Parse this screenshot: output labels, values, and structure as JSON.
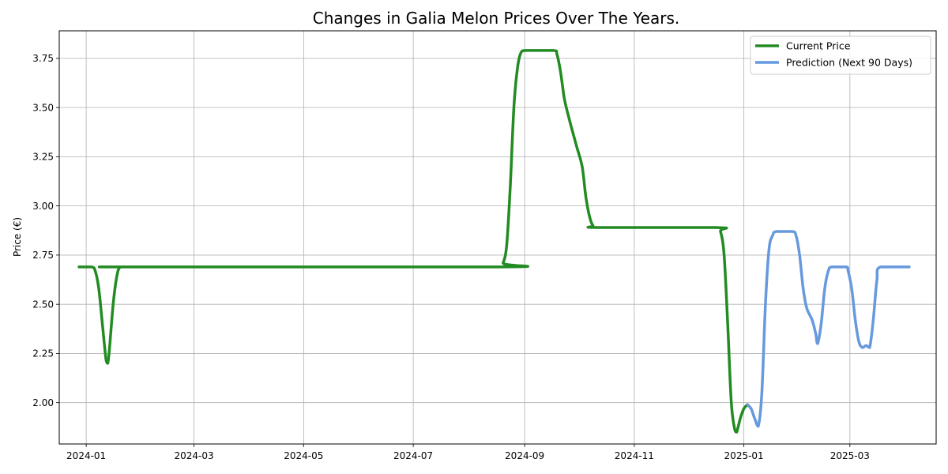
{
  "chart_data": {
    "type": "line",
    "title": "Changes in Galia Melon Prices Over The Years.",
    "xlabel": "",
    "ylabel": "Price (€)",
    "x_type": "date",
    "xlim": [
      "2023-12-17",
      "2025-04-18"
    ],
    "ylim": [
      1.79,
      3.89
    ],
    "x_ticks": [
      "2024-01-01",
      "2024-03-01",
      "2024-05-01",
      "2024-07-01",
      "2024-09-01",
      "2024-11-01",
      "2025-01-01",
      "2025-03-01"
    ],
    "x_tick_labels": [
      "2024-01",
      "2024-03",
      "2024-05",
      "2024-07",
      "2024-09",
      "2024-11",
      "2025-01",
      "2025-03"
    ],
    "y_ticks": [
      2.0,
      2.25,
      2.5,
      2.75,
      3.0,
      3.25,
      3.5,
      3.75
    ],
    "y_tick_labels": [
      "2.00",
      "2.25",
      "2.50",
      "2.75",
      "3.00",
      "3.25",
      "3.50",
      "3.75"
    ],
    "grid": true,
    "legend_position": "top-right",
    "series": [
      {
        "name": "Current Price",
        "color": "#228b22",
        "points": [
          [
            "2023-12-28",
            2.69
          ],
          [
            "2024-01-04",
            2.69
          ],
          [
            "2024-01-06",
            2.67
          ],
          [
            "2024-01-08",
            2.58
          ],
          [
            "2024-01-10",
            2.4
          ],
          [
            "2024-01-12",
            2.22
          ],
          [
            "2024-01-13",
            2.2
          ],
          [
            "2024-01-14",
            2.28
          ],
          [
            "2024-01-16",
            2.5
          ],
          [
            "2024-01-18",
            2.64
          ],
          [
            "2024-01-20",
            2.69
          ],
          [
            "2024-01-25",
            2.69
          ],
          [
            "2024-08-18",
            2.69
          ],
          [
            "2024-08-20",
            2.71
          ],
          [
            "2024-08-22",
            2.8
          ],
          [
            "2024-08-24",
            3.1
          ],
          [
            "2024-08-26",
            3.5
          ],
          [
            "2024-08-28",
            3.7
          ],
          [
            "2024-08-30",
            3.78
          ],
          [
            "2024-09-02",
            3.79
          ],
          [
            "2024-09-17",
            3.79
          ],
          [
            "2024-09-19",
            3.77
          ],
          [
            "2024-09-21",
            3.68
          ],
          [
            "2024-09-23",
            3.55
          ],
          [
            "2024-09-25",
            3.47
          ],
          [
            "2024-09-27",
            3.4
          ],
          [
            "2024-09-30",
            3.3
          ],
          [
            "2024-10-03",
            3.2
          ],
          [
            "2024-10-05",
            3.05
          ],
          [
            "2024-10-07",
            2.95
          ],
          [
            "2024-10-09",
            2.9
          ],
          [
            "2024-10-12",
            2.89
          ],
          [
            "2024-12-17",
            2.89
          ],
          [
            "2024-12-19",
            2.87
          ],
          [
            "2024-12-21",
            2.75
          ],
          [
            "2024-12-23",
            2.4
          ],
          [
            "2024-12-25",
            2.0
          ],
          [
            "2024-12-27",
            1.86
          ],
          [
            "2024-12-28",
            1.85
          ],
          [
            "2024-12-30",
            1.92
          ],
          [
            "2025-01-01",
            1.97
          ],
          [
            "2025-01-03",
            1.99
          ]
        ]
      },
      {
        "name": "Prediction (Next 90 Days)",
        "color": "#6699dd",
        "points": [
          [
            "2025-01-03",
            1.99
          ],
          [
            "2025-01-05",
            1.97
          ],
          [
            "2025-01-07",
            1.92
          ],
          [
            "2025-01-09",
            1.88
          ],
          [
            "2025-01-11",
            2.05
          ],
          [
            "2025-01-13",
            2.5
          ],
          [
            "2025-01-15",
            2.78
          ],
          [
            "2025-01-17",
            2.85
          ],
          [
            "2025-01-19",
            2.87
          ],
          [
            "2025-01-28",
            2.87
          ],
          [
            "2025-01-30",
            2.85
          ],
          [
            "2025-02-01",
            2.75
          ],
          [
            "2025-02-03",
            2.58
          ],
          [
            "2025-02-05",
            2.48
          ],
          [
            "2025-02-08",
            2.42
          ],
          [
            "2025-02-10",
            2.35
          ],
          [
            "2025-02-11",
            2.3
          ],
          [
            "2025-02-13",
            2.4
          ],
          [
            "2025-02-15",
            2.58
          ],
          [
            "2025-02-17",
            2.67
          ],
          [
            "2025-02-19",
            2.69
          ],
          [
            "2025-02-27",
            2.69
          ],
          [
            "2025-02-28",
            2.67
          ],
          [
            "2025-03-02",
            2.58
          ],
          [
            "2025-03-04",
            2.42
          ],
          [
            "2025-03-06",
            2.31
          ],
          [
            "2025-03-08",
            2.28
          ],
          [
            "2025-03-10",
            2.29
          ],
          [
            "2025-03-12",
            2.28
          ],
          [
            "2025-03-14",
            2.42
          ],
          [
            "2025-03-16",
            2.62
          ],
          [
            "2025-03-18",
            2.69
          ],
          [
            "2025-04-03",
            2.69
          ]
        ]
      }
    ]
  }
}
